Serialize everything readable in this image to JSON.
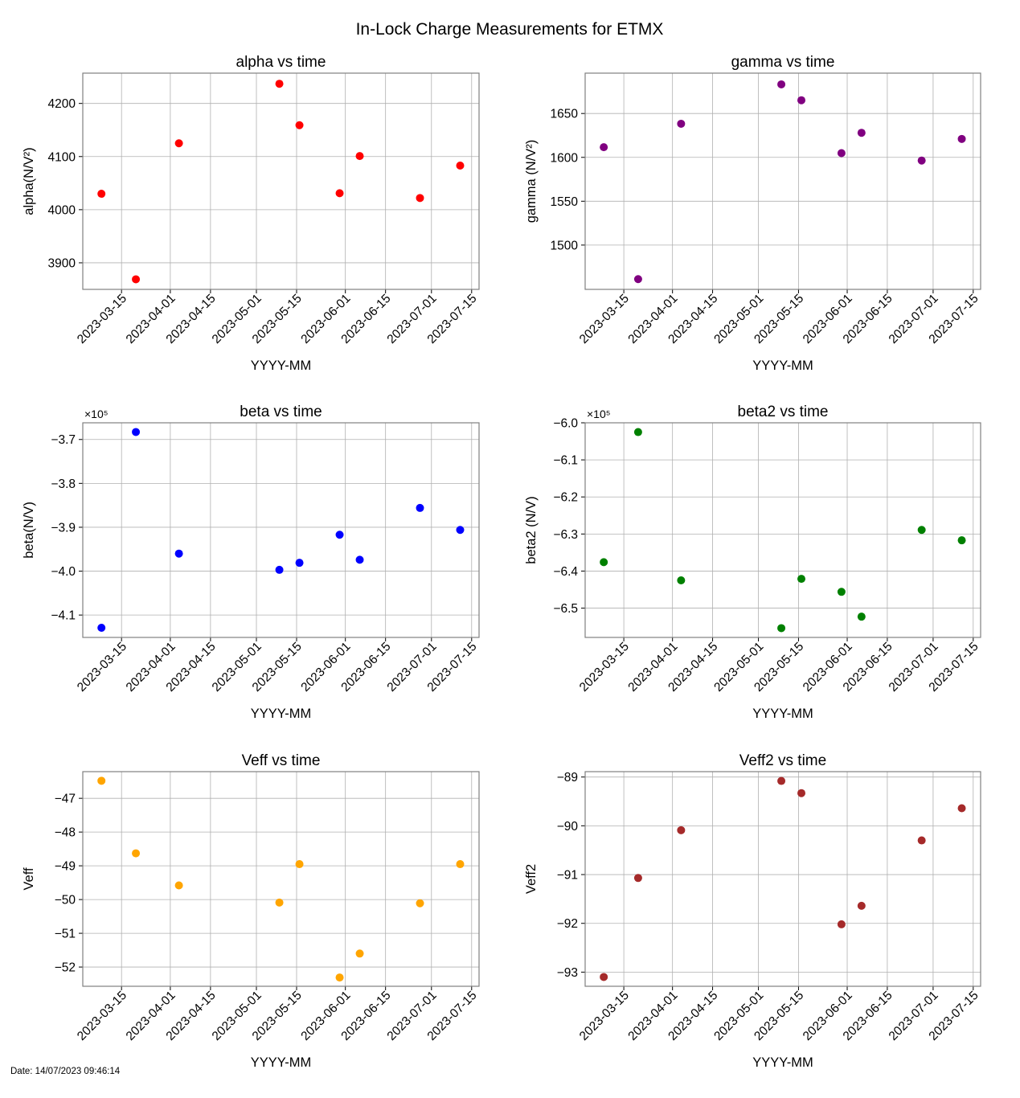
{
  "figure": {
    "suptitle": "In-Lock Charge Measurements for ETMX",
    "footer": "Date: 14/07/2023 09:46:14"
  },
  "chart_data": [
    {
      "type": "scatter",
      "id": "alpha",
      "title": "alpha vs time",
      "xlabel": "YYYY-MM",
      "ylabel": "alpha(N/V²)",
      "color": "#ff0000",
      "x": [
        "2023-03-08",
        "2023-03-20",
        "2023-04-04",
        "2023-05-09",
        "2023-05-16",
        "2023-05-30",
        "2023-06-06",
        "2023-06-27",
        "2023-07-11"
      ],
      "y": [
        4030,
        3869,
        4125,
        4237,
        4159,
        4031,
        4101,
        4022,
        4083
      ],
      "xlim": [
        "2023-03-01T12:00",
        "2023-07-17T14:00"
      ],
      "ylim": [
        3850,
        4257
      ],
      "xticks": [
        "2023-03-15",
        "2023-04-01",
        "2023-04-15",
        "2023-05-01",
        "2023-05-15",
        "2023-06-01",
        "2023-06-15",
        "2023-07-01",
        "2023-07-15"
      ],
      "yticks": [
        3900,
        4000,
        4100,
        4200
      ],
      "ytick_labels": [
        "3900",
        "4000",
        "4100",
        "4200"
      ],
      "offset_label": "",
      "grid": true
    },
    {
      "type": "scatter",
      "id": "gamma",
      "title": "gamma vs time",
      "xlabel": "YYYY-MM",
      "ylabel": "gamma (N/V²)",
      "color": "#800080",
      "x": [
        "2023-03-08",
        "2023-03-20",
        "2023-04-04",
        "2023-05-09",
        "2023-05-16",
        "2023-05-30",
        "2023-06-06",
        "2023-06-27",
        "2023-07-11"
      ],
      "y": [
        1611.6,
        1461.2,
        1638.3,
        1683.2,
        1665.1,
        1604.8,
        1628.0,
        1596.4,
        1621.0
      ],
      "xlim": [
        "2023-03-01T12:00",
        "2023-07-17T14:00"
      ],
      "ylim": [
        1449.5,
        1696
      ],
      "xticks": [
        "2023-03-15",
        "2023-04-01",
        "2023-04-15",
        "2023-05-01",
        "2023-05-15",
        "2023-06-01",
        "2023-06-15",
        "2023-07-01",
        "2023-07-15"
      ],
      "yticks": [
        1500,
        1550,
        1600,
        1650
      ],
      "ytick_labels": [
        "1500",
        "1550",
        "1600",
        "1650"
      ],
      "offset_label": "",
      "grid": true
    },
    {
      "type": "scatter",
      "id": "beta",
      "title": "beta vs time",
      "xlabel": "YYYY-MM",
      "ylabel": "beta(N/V)",
      "color": "#0000ff",
      "x": [
        "2023-03-08",
        "2023-03-20",
        "2023-04-04",
        "2023-05-09",
        "2023-05-16",
        "2023-05-30",
        "2023-06-06",
        "2023-06-27",
        "2023-07-11"
      ],
      "y": [
        -412900,
        -368300,
        -396000,
        -399700,
        -398100,
        -391700,
        -397400,
        -385600,
        -390600
      ],
      "xlim": [
        "2023-03-01T12:00",
        "2023-07-17T14:00"
      ],
      "ylim": [
        -415100,
        -366200
      ],
      "xticks": [
        "2023-03-15",
        "2023-04-01",
        "2023-04-15",
        "2023-05-01",
        "2023-05-15",
        "2023-06-01",
        "2023-06-15",
        "2023-07-01",
        "2023-07-15"
      ],
      "yticks": [
        -410000,
        -400000,
        -390000,
        -380000,
        -370000
      ],
      "ytick_labels": [
        "−4.1",
        "−4.0",
        "−3.9",
        "−3.8",
        "−3.7"
      ],
      "offset_label": "×10⁵",
      "grid": true
    },
    {
      "type": "scatter",
      "id": "beta2",
      "title": "beta2 vs time",
      "xlabel": "YYYY-MM",
      "ylabel": "beta2 (N/V)",
      "color": "#008000",
      "x": [
        "2023-03-08",
        "2023-03-20",
        "2023-04-04",
        "2023-05-09",
        "2023-05-16",
        "2023-05-30",
        "2023-06-06",
        "2023-06-27",
        "2023-07-11"
      ],
      "y": [
        -637600,
        -602500,
        -642500,
        -655400,
        -642100,
        -645600,
        -652300,
        -628900,
        -631700
      ],
      "xlim": [
        "2023-03-01T12:00",
        "2023-07-17T14:00"
      ],
      "ylim": [
        -657900,
        -600000
      ],
      "xticks": [
        "2023-03-15",
        "2023-04-01",
        "2023-04-15",
        "2023-05-01",
        "2023-05-15",
        "2023-06-01",
        "2023-06-15",
        "2023-07-01",
        "2023-07-15"
      ],
      "yticks": [
        -650000,
        -640000,
        -630000,
        -620000,
        -610000,
        -600000
      ],
      "ytick_labels": [
        "−6.5",
        "−6.4",
        "−6.3",
        "−6.2",
        "−6.1",
        "−6.0"
      ],
      "offset_label": "×10⁵",
      "grid": true
    },
    {
      "type": "scatter",
      "id": "veff",
      "title": "Veff vs time",
      "xlabel": "YYYY-MM",
      "ylabel": "Veff",
      "color": "#ffa500",
      "x": [
        "2023-03-08",
        "2023-03-20",
        "2023-04-04",
        "2023-05-09",
        "2023-05-16",
        "2023-05-30",
        "2023-06-06",
        "2023-06-27",
        "2023-07-11"
      ],
      "y": [
        -46.48,
        -48.63,
        -49.58,
        -50.09,
        -48.95,
        -52.31,
        -51.6,
        -50.11,
        -48.95
      ],
      "xlim": [
        "2023-03-01T12:00",
        "2023-07-17T14:00"
      ],
      "ylim": [
        -52.57,
        -46.21
      ],
      "xticks": [
        "2023-03-15",
        "2023-04-01",
        "2023-04-15",
        "2023-05-01",
        "2023-05-15",
        "2023-06-01",
        "2023-06-15",
        "2023-07-01",
        "2023-07-15"
      ],
      "yticks": [
        -52,
        -51,
        -50,
        -49,
        -48,
        -47
      ],
      "ytick_labels": [
        "−52",
        "−51",
        "−50",
        "−49",
        "−48",
        "−47"
      ],
      "offset_label": "",
      "grid": true
    },
    {
      "type": "scatter",
      "id": "veff2",
      "title": "Veff2 vs time",
      "xlabel": "YYYY-MM",
      "ylabel": "Veff2",
      "color": "#a52a2a",
      "x": [
        "2023-03-08",
        "2023-03-20",
        "2023-04-04",
        "2023-05-09",
        "2023-05-16",
        "2023-05-30",
        "2023-06-06",
        "2023-06-27",
        "2023-07-11"
      ],
      "y": [
        -93.1,
        -91.07,
        -90.09,
        -89.08,
        -89.33,
        -92.02,
        -91.64,
        -90.3,
        -89.64
      ],
      "xlim": [
        "2023-03-01T12:00",
        "2023-07-17T14:00"
      ],
      "ylim": [
        -93.29,
        -88.89
      ],
      "xticks": [
        "2023-03-15",
        "2023-04-01",
        "2023-04-15",
        "2023-05-01",
        "2023-05-15",
        "2023-06-01",
        "2023-06-15",
        "2023-07-01",
        "2023-07-15"
      ],
      "yticks": [
        -93,
        -92,
        -91,
        -90,
        -89
      ],
      "ytick_labels": [
        "−93",
        "−92",
        "−91",
        "−90",
        "−89"
      ],
      "offset_label": "",
      "grid": true
    }
  ]
}
